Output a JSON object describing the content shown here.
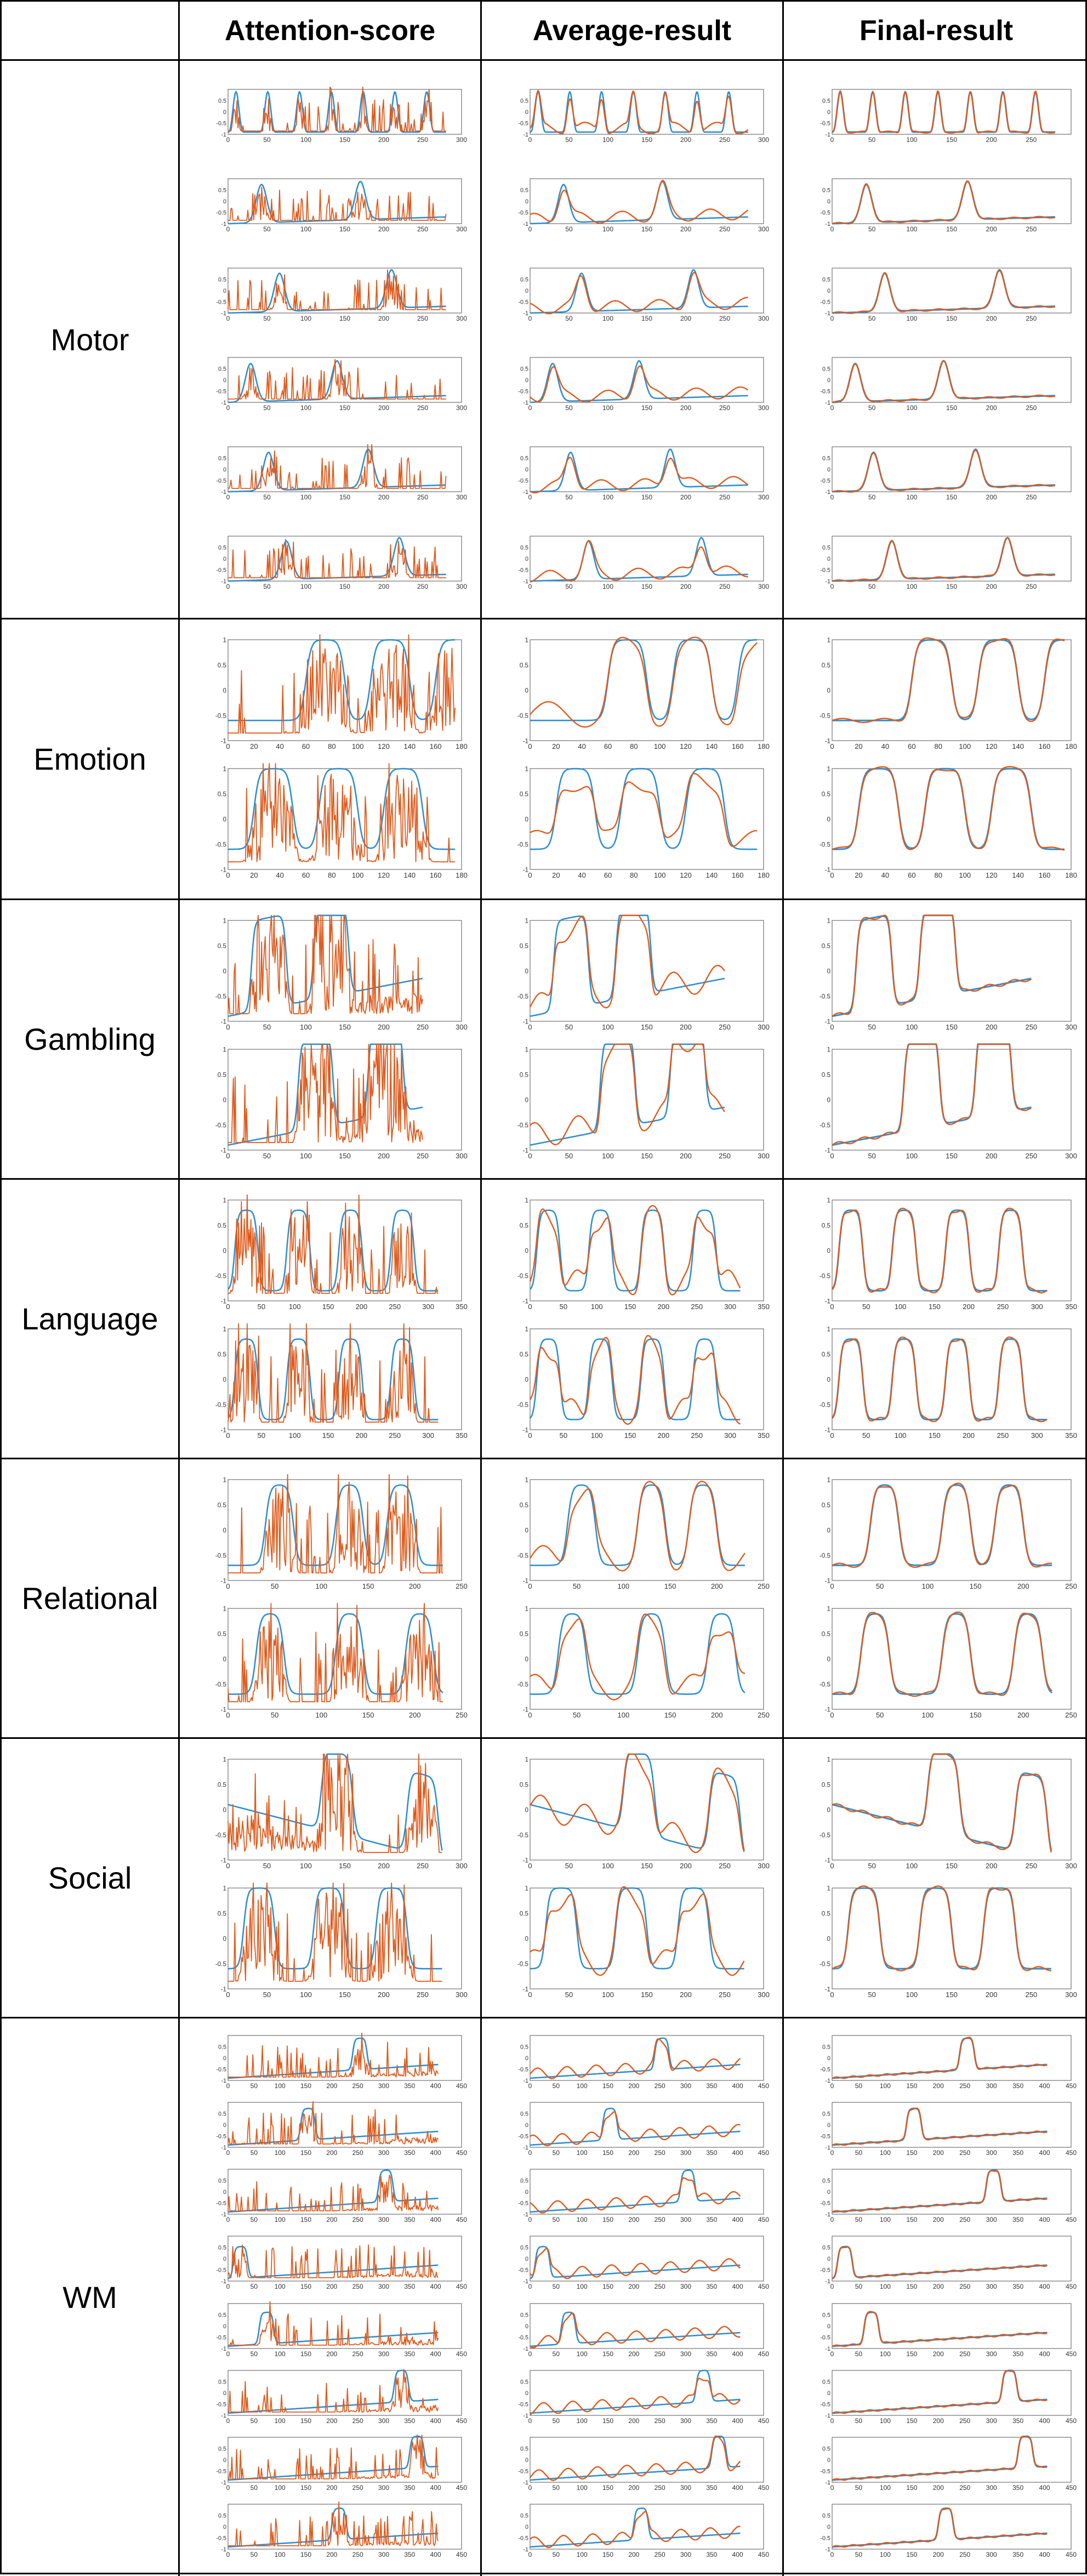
{
  "header": {
    "corner": "",
    "columns": [
      "Attention-score",
      "Average-result",
      "Final-result"
    ]
  },
  "colors": {
    "target": "#2e8fd0",
    "prediction": "#e05a1c",
    "axis": "#555555"
  },
  "rows": [
    {
      "task": "Motor",
      "plots_per_cell": 6,
      "xlim": [
        0,
        300
      ],
      "xticks": [
        0,
        50,
        100,
        150,
        200,
        250,
        300
      ],
      "final_xticks": [
        0,
        50,
        100,
        150,
        200,
        250
      ],
      "ylim": [
        -1,
        1
      ],
      "yticks": [
        "0.5",
        "0",
        "-0.5",
        "-1"
      ],
      "signal_len": 280
    },
    {
      "task": "Emotion",
      "plots_per_cell": 2,
      "xlim": [
        0,
        180
      ],
      "xticks": [
        0,
        20,
        40,
        60,
        80,
        100,
        120,
        140,
        160,
        180
      ],
      "ylim": [
        -1,
        1
      ],
      "yticks": [
        "1",
        "0.5",
        "0",
        "-0.5",
        "-1"
      ],
      "signal_len": 175
    },
    {
      "task": "Gambling",
      "plots_per_cell": 2,
      "xlim": [
        0,
        300
      ],
      "xticks": [
        0,
        50,
        100,
        150,
        200,
        250,
        300
      ],
      "ylim": [
        -1,
        1
      ],
      "yticks": [
        "1",
        "0.5",
        "0",
        "-0.5",
        "-1"
      ],
      "signal_len": 250
    },
    {
      "task": "Language",
      "plots_per_cell": 2,
      "xlim": [
        0,
        350
      ],
      "xticks": [
        0,
        50,
        100,
        150,
        200,
        250,
        300,
        350
      ],
      "ylim": [
        -1,
        1
      ],
      "yticks": [
        "1",
        "0.5",
        "0",
        "-0.5",
        "-1"
      ],
      "signal_len": 315
    },
    {
      "task": "Relational",
      "plots_per_cell": 2,
      "xlim": [
        0,
        250
      ],
      "xticks": [
        0,
        50,
        100,
        150,
        200,
        250
      ],
      "ylim": [
        -1,
        1
      ],
      "yticks": [
        "1",
        "0.5",
        "0",
        "-0.5",
        "-1"
      ],
      "signal_len": 230
    },
    {
      "task": "Social",
      "plots_per_cell": 2,
      "xlim": [
        0,
        300
      ],
      "xticks": [
        0,
        50,
        100,
        150,
        200,
        250,
        300
      ],
      "ylim": [
        -1,
        1
      ],
      "yticks": [
        "1",
        "0.5",
        "0",
        "-0.5",
        "-1"
      ],
      "signal_len": 275
    },
    {
      "task": "WM",
      "plots_per_cell": 8,
      "xlim": [
        0,
        450
      ],
      "xticks": [
        0,
        50,
        100,
        150,
        200,
        250,
        300,
        350,
        400,
        450
      ],
      "ylim": [
        -1,
        1
      ],
      "yticks": [
        "0.5",
        "0",
        "-0.5",
        "-1"
      ],
      "signal_len": 405
    }
  ],
  "chart_data": [
    {
      "type": "line",
      "grid": false,
      "panel": "Motor",
      "series": [
        {
          "values": []
        },
        {
          "values": []
        }
      ]
    },
    {
      "type": "line",
      "grid": false,
      "panel": "Emotion",
      "series": [
        {
          "values": []
        },
        {
          "values": []
        }
      ]
    },
    {
      "type": "line",
      "grid": false,
      "panel": "Gambling",
      "series": [
        {
          "values": []
        },
        {
          "values": []
        }
      ]
    },
    {
      "type": "line",
      "grid": false,
      "panel": "Language",
      "series": [
        {
          "values": []
        },
        {
          "values": []
        }
      ]
    },
    {
      "type": "line",
      "grid": false,
      "panel": "Relational",
      "series": [
        {
          "values": []
        },
        {
          "values": []
        }
      ]
    },
    {
      "type": "line",
      "grid": false,
      "panel": "Social",
      "series": [
        {
          "values": []
        },
        {
          "values": []
        }
      ]
    },
    {
      "type": "line",
      "grid": false,
      "panel": "WM",
      "series": [
        {
          "values": []
        },
        {
          "values": []
        }
      ]
    }
  ]
}
